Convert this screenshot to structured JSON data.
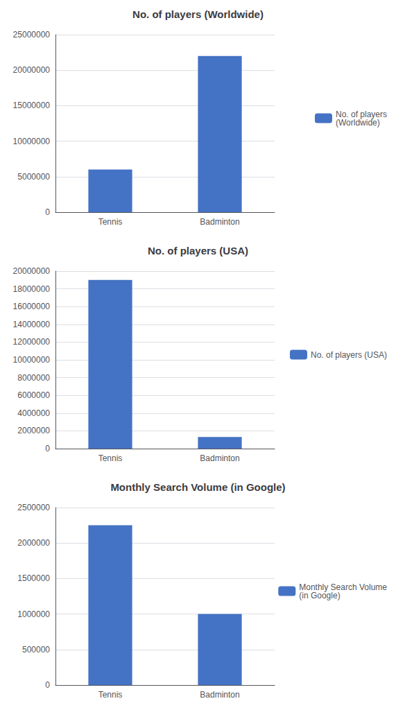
{
  "chart_data": [
    {
      "type": "bar",
      "title": "No. of players (Worldwide)",
      "categories": [
        "Tennis",
        "Badminton"
      ],
      "series": [
        {
          "name": "No. of players\n(Worldwide)",
          "color": "#4472C4",
          "values": [
            6000000,
            22000000
          ]
        }
      ],
      "ylim": [
        0,
        25000000
      ],
      "yticks": [
        0,
        5000000,
        10000000,
        15000000,
        20000000,
        25000000
      ],
      "grid": true,
      "legend": "right"
    },
    {
      "type": "bar",
      "title": "No. of players (USA)",
      "categories": [
        "Tennis",
        "Badminton"
      ],
      "series": [
        {
          "name": "No. of players (USA)",
          "color": "#4472C4",
          "values": [
            19000000,
            1300000
          ]
        }
      ],
      "ylim": [
        0,
        20000000
      ],
      "yticks": [
        0,
        2000000,
        4000000,
        6000000,
        8000000,
        10000000,
        12000000,
        14000000,
        16000000,
        18000000,
        20000000
      ],
      "grid": true,
      "legend": "right"
    },
    {
      "type": "bar",
      "title": "Monthly Search Volume (in Google)",
      "categories": [
        "Tennis",
        "Badminton"
      ],
      "series": [
        {
          "name": "Monthly Search Volume\n(in Google)",
          "color": "#4472C4",
          "values": [
            2250000,
            1000000
          ]
        }
      ],
      "ylim": [
        0,
        2500000
      ],
      "yticks": [
        0,
        500000,
        1000000,
        1500000,
        2000000,
        2500000
      ],
      "grid": true,
      "legend": "right"
    }
  ]
}
